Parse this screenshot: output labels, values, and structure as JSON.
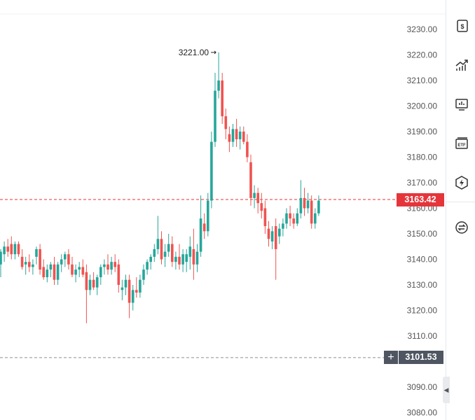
{
  "chart_data": {
    "type": "candlestick",
    "y_axis": {
      "ticks": [
        "3230.00",
        "3220.00",
        "3210.00",
        "3200.00",
        "3190.00",
        "3180.00",
        "3170.00",
        "3160.00",
        "3150.00",
        "3140.00",
        "3130.00",
        "3120.00",
        "3110.00",
        "3100.00",
        "3090.00",
        "3080.00"
      ],
      "range": [
        3078,
        3235
      ],
      "position": "right"
    },
    "last_price": "3163.42",
    "crosshair_price": "3101.53",
    "high_annotation": "3221.00",
    "colors": {
      "up": "#26a69a",
      "down": "#ef5350",
      "last_line": "#e5353b",
      "crosshair_line": "#8a8f99"
    },
    "candles": [
      {
        "o": 3138,
        "h": 3144,
        "l": 3133,
        "c": 3143
      },
      {
        "o": 3142,
        "h": 3147,
        "l": 3139,
        "c": 3145
      },
      {
        "o": 3145,
        "h": 3148,
        "l": 3141,
        "c": 3143
      },
      {
        "o": 3146,
        "h": 3149,
        "l": 3140,
        "c": 3142
      },
      {
        "o": 3142,
        "h": 3147,
        "l": 3140,
        "c": 3146
      },
      {
        "o": 3146,
        "h": 3147,
        "l": 3141,
        "c": 3142
      },
      {
        "o": 3141,
        "h": 3144,
        "l": 3136,
        "c": 3137
      },
      {
        "o": 3138,
        "h": 3141,
        "l": 3134,
        "c": 3139
      },
      {
        "o": 3139,
        "h": 3142,
        "l": 3135,
        "c": 3137
      },
      {
        "o": 3137,
        "h": 3140,
        "l": 3134,
        "c": 3138
      },
      {
        "o": 3141,
        "h": 3145,
        "l": 3138,
        "c": 3144
      },
      {
        "o": 3144,
        "h": 3146,
        "l": 3134,
        "c": 3136
      },
      {
        "o": 3137,
        "h": 3140,
        "l": 3132,
        "c": 3133
      },
      {
        "o": 3133,
        "h": 3138,
        "l": 3131,
        "c": 3136
      },
      {
        "o": 3136,
        "h": 3139,
        "l": 3133,
        "c": 3138
      },
      {
        "o": 3138,
        "h": 3141,
        "l": 3130,
        "c": 3132
      },
      {
        "o": 3132,
        "h": 3139,
        "l": 3130,
        "c": 3138
      },
      {
        "o": 3138,
        "h": 3142,
        "l": 3135,
        "c": 3140
      },
      {
        "o": 3140,
        "h": 3143,
        "l": 3137,
        "c": 3142
      },
      {
        "o": 3142,
        "h": 3144,
        "l": 3136,
        "c": 3138
      },
      {
        "o": 3138,
        "h": 3141,
        "l": 3133,
        "c": 3134
      },
      {
        "o": 3134,
        "h": 3138,
        "l": 3131,
        "c": 3136
      },
      {
        "o": 3136,
        "h": 3139,
        "l": 3133,
        "c": 3137
      },
      {
        "o": 3137,
        "h": 3140,
        "l": 3133,
        "c": 3134
      },
      {
        "o": 3135,
        "h": 3138,
        "l": 3115,
        "c": 3128
      },
      {
        "o": 3128,
        "h": 3134,
        "l": 3126,
        "c": 3132
      },
      {
        "o": 3132,
        "h": 3135,
        "l": 3128,
        "c": 3129
      },
      {
        "o": 3129,
        "h": 3134,
        "l": 3126,
        "c": 3133
      },
      {
        "o": 3133,
        "h": 3138,
        "l": 3130,
        "c": 3137
      },
      {
        "o": 3137,
        "h": 3140,
        "l": 3134,
        "c": 3138
      },
      {
        "o": 3138,
        "h": 3142,
        "l": 3134,
        "c": 3136
      },
      {
        "o": 3136,
        "h": 3141,
        "l": 3134,
        "c": 3139
      },
      {
        "o": 3139,
        "h": 3142,
        "l": 3135,
        "c": 3137
      },
      {
        "o": 3138,
        "h": 3140,
        "l": 3127,
        "c": 3130
      },
      {
        "o": 3128,
        "h": 3132,
        "l": 3124,
        "c": 3129
      },
      {
        "o": 3129,
        "h": 3134,
        "l": 3126,
        "c": 3132
      },
      {
        "o": 3132,
        "h": 3134,
        "l": 3117,
        "c": 3123
      },
      {
        "o": 3123,
        "h": 3130,
        "l": 3120,
        "c": 3128
      },
      {
        "o": 3128,
        "h": 3133,
        "l": 3125,
        "c": 3127
      },
      {
        "o": 3127,
        "h": 3134,
        "l": 3125,
        "c": 3132
      },
      {
        "o": 3132,
        "h": 3138,
        "l": 3130,
        "c": 3136
      },
      {
        "o": 3136,
        "h": 3140,
        "l": 3134,
        "c": 3139
      },
      {
        "o": 3139,
        "h": 3142,
        "l": 3136,
        "c": 3141
      },
      {
        "o": 3141,
        "h": 3146,
        "l": 3139,
        "c": 3144
      },
      {
        "o": 3144,
        "h": 3157,
        "l": 3142,
        "c": 3148
      },
      {
        "o": 3148,
        "h": 3151,
        "l": 3138,
        "c": 3140
      },
      {
        "o": 3141,
        "h": 3146,
        "l": 3137,
        "c": 3143
      },
      {
        "o": 3143,
        "h": 3150,
        "l": 3141,
        "c": 3146
      },
      {
        "o": 3146,
        "h": 3149,
        "l": 3137,
        "c": 3139
      },
      {
        "o": 3139,
        "h": 3143,
        "l": 3136,
        "c": 3141
      },
      {
        "o": 3141,
        "h": 3146,
        "l": 3136,
        "c": 3138
      },
      {
        "o": 3138,
        "h": 3144,
        "l": 3135,
        "c": 3142
      },
      {
        "o": 3139,
        "h": 3144,
        "l": 3135,
        "c": 3142
      },
      {
        "o": 3141,
        "h": 3149,
        "l": 3136,
        "c": 3145
      },
      {
        "o": 3144,
        "h": 3152,
        "l": 3132,
        "c": 3138
      },
      {
        "o": 3138,
        "h": 3146,
        "l": 3135,
        "c": 3143
      },
      {
        "o": 3143,
        "h": 3165,
        "l": 3141,
        "c": 3156
      },
      {
        "o": 3154,
        "h": 3158,
        "l": 3148,
        "c": 3151
      },
      {
        "o": 3151,
        "h": 3166,
        "l": 3149,
        "c": 3163
      },
      {
        "o": 3163,
        "h": 3190,
        "l": 3160,
        "c": 3186
      },
      {
        "o": 3186,
        "h": 3213,
        "l": 3184,
        "c": 3206
      },
      {
        "o": 3206,
        "h": 3221,
        "l": 3203,
        "c": 3210
      },
      {
        "o": 3210,
        "h": 3213,
        "l": 3193,
        "c": 3196
      },
      {
        "o": 3196,
        "h": 3199,
        "l": 3187,
        "c": 3191
      },
      {
        "o": 3189,
        "h": 3192,
        "l": 3182,
        "c": 3186
      },
      {
        "o": 3186,
        "h": 3193,
        "l": 3184,
        "c": 3191
      },
      {
        "o": 3191,
        "h": 3195,
        "l": 3184,
        "c": 3187
      },
      {
        "o": 3187,
        "h": 3192,
        "l": 3183,
        "c": 3190
      },
      {
        "o": 3190,
        "h": 3192,
        "l": 3185,
        "c": 3186
      },
      {
        "o": 3186,
        "h": 3189,
        "l": 3178,
        "c": 3180
      },
      {
        "o": 3178,
        "h": 3181,
        "l": 3161,
        "c": 3164
      },
      {
        "o": 3164,
        "h": 3169,
        "l": 3160,
        "c": 3166
      },
      {
        "o": 3166,
        "h": 3168,
        "l": 3158,
        "c": 3162
      },
      {
        "o": 3162,
        "h": 3166,
        "l": 3156,
        "c": 3159
      },
      {
        "o": 3160,
        "h": 3163,
        "l": 3150,
        "c": 3153
      },
      {
        "o": 3152,
        "h": 3155,
        "l": 3145,
        "c": 3148
      },
      {
        "o": 3147,
        "h": 3153,
        "l": 3144,
        "c": 3151
      },
      {
        "o": 3153,
        "h": 3156,
        "l": 3132,
        "c": 3144
      },
      {
        "o": 3149,
        "h": 3154,
        "l": 3146,
        "c": 3152
      },
      {
        "o": 3152,
        "h": 3156,
        "l": 3149,
        "c": 3154
      },
      {
        "o": 3154,
        "h": 3160,
        "l": 3152,
        "c": 3158
      },
      {
        "o": 3158,
        "h": 3161,
        "l": 3153,
        "c": 3156
      },
      {
        "o": 3156,
        "h": 3158,
        "l": 3152,
        "c": 3154
      },
      {
        "o": 3154,
        "h": 3160,
        "l": 3153,
        "c": 3158
      },
      {
        "o": 3158,
        "h": 3171,
        "l": 3156,
        "c": 3164
      },
      {
        "o": 3164,
        "h": 3168,
        "l": 3157,
        "c": 3160
      },
      {
        "o": 3160,
        "h": 3166,
        "l": 3158,
        "c": 3163
      },
      {
        "o": 3163,
        "h": 3165,
        "l": 3152,
        "c": 3154
      },
      {
        "o": 3154,
        "h": 3160,
        "l": 3152,
        "c": 3158
      },
      {
        "o": 3158,
        "h": 3165,
        "l": 3157,
        "c": 3163
      }
    ]
  },
  "toolbar": {
    "items": [
      {
        "icon": "dollar-document-icon"
      },
      {
        "icon": "growth-chart-icon"
      },
      {
        "icon": "monitor-chart-icon"
      },
      {
        "icon": "etf-card-icon"
      },
      {
        "icon": "lightning-hexagon-icon"
      },
      {
        "icon": "swap-icon"
      }
    ]
  }
}
